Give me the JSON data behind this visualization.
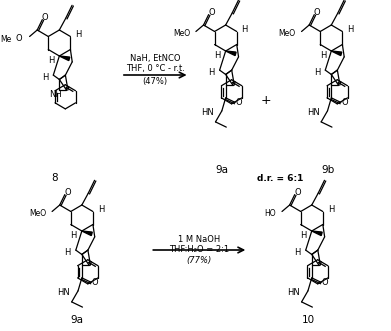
{
  "bg": "#ffffff",
  "reaction1_line1": "NaH, EtNCO",
  "reaction1_line2": "THF, 0 °C - r.t.",
  "reaction1_yield": "(47%)",
  "reaction2_line1": "1 M NaOH",
  "reaction2_line2": "THF:H₂O = 2:1",
  "reaction2_yield": "(77%)",
  "label8": "8",
  "label9a_top": "9a",
  "label9b": "9b",
  "label_dr": "d.r. = 6:1",
  "label9a_bot": "9a",
  "label10": "10",
  "plus": "+",
  "font_size_label": 7.5,
  "font_size_atom": 6.0,
  "font_size_reagent": 6.0,
  "font_size_dr": 6.5,
  "lw": 0.9
}
